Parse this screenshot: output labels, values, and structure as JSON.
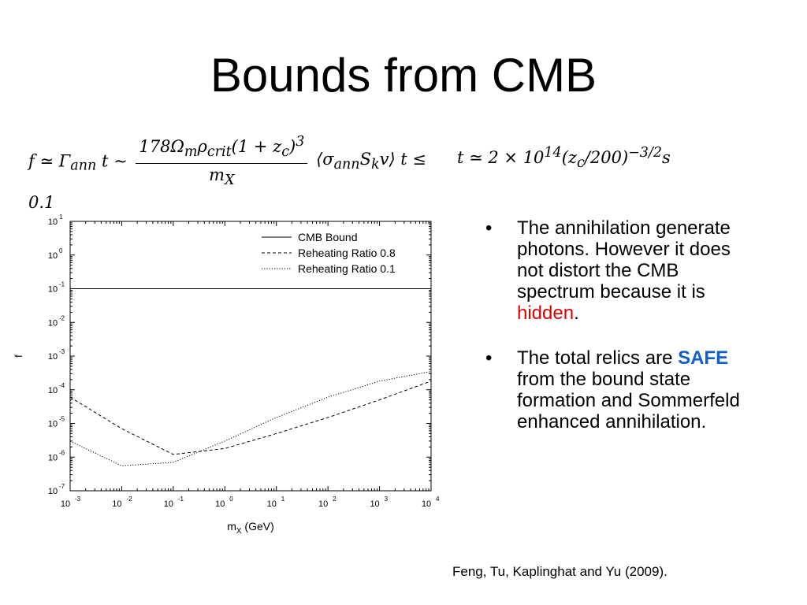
{
  "slide": {
    "title": "Bounds from CMB",
    "citation": "Feng, Tu, Kaplinghat and Yu (2009)."
  },
  "formula": {
    "lhs": "f ≃ Γ",
    "lhs_sub": "ann",
    "lhs_t": "t ∼",
    "numerator": "178Ω",
    "numerator_sub_m": "m",
    "numerator_rho": "ρ",
    "numerator_sub_crit": "crit",
    "numerator_tail": "(1 + z",
    "numerator_sub_c": "c",
    "numerator_end": ")",
    "numerator_exp": "3",
    "denominator": "m",
    "denominator_sub": "X",
    "cross_section": "⟨σ",
    "cross_sub_ann": "ann",
    "cross_s": "S",
    "cross_sub_k": "k",
    "cross_end": "v⟩ t ≤ 0.1",
    "time_lhs": "t ≃ 2 × 10",
    "time_exp": "14",
    "time_mid": "(z",
    "time_sub_c": "c",
    "time_tail": "/200)",
    "time_exp2": "−3/2",
    "time_unit": "s"
  },
  "bullets": [
    {
      "text_before": "The annihilation generate photons. However it does not distort the CMB spectrum because it is ",
      "highlight": "hidden",
      "text_after": ".",
      "highlight_color": "#e00000"
    },
    {
      "text_before": "The total relics are ",
      "highlight": "SAFE",
      "text_after": " from the bound state formation and Sommerfeld enhanced annihilation.",
      "highlight_color": "#1060d0"
    }
  ],
  "bullet_glyph": "•",
  "chart_data": {
    "type": "line",
    "xlabel": "m",
    "xlabel_sub": "X",
    "xlabel_unit": " (GeV)",
    "ylabel": "f",
    "x_scale": "log",
    "y_scale": "log",
    "xlim": [
      0.001,
      10000
    ],
    "ylim": [
      1e-07,
      10
    ],
    "x_ticks": [
      {
        "value": 0.001,
        "base": "10",
        "exp": "-3"
      },
      {
        "value": 0.01,
        "base": "10",
        "exp": "-2"
      },
      {
        "value": 0.1,
        "base": "10",
        "exp": "-1"
      },
      {
        "value": 1,
        "base": "10",
        "exp": "0"
      },
      {
        "value": 10,
        "base": "10",
        "exp": "1"
      },
      {
        "value": 100,
        "base": "10",
        "exp": "2"
      },
      {
        "value": 1000,
        "base": "10",
        "exp": "3"
      },
      {
        "value": 10000,
        "base": "10",
        "exp": "4"
      }
    ],
    "y_ticks": [
      {
        "value": 10,
        "base": "10",
        "exp": "1"
      },
      {
        "value": 1,
        "base": "10",
        "exp": "0"
      },
      {
        "value": 0.1,
        "base": "10",
        "exp": "-1"
      },
      {
        "value": 0.01,
        "base": "10",
        "exp": "-2"
      },
      {
        "value": 0.001,
        "base": "10",
        "exp": "-3"
      },
      {
        "value": 0.0001,
        "base": "10",
        "exp": "-4"
      },
      {
        "value": 1e-05,
        "base": "10",
        "exp": "-5"
      },
      {
        "value": 1e-06,
        "base": "10",
        "exp": "-6"
      },
      {
        "value": 1e-07,
        "base": "10",
        "exp": "-7"
      }
    ],
    "legend_position": "top-right",
    "grid": false,
    "series": [
      {
        "name": "CMB Bound",
        "style": "solid",
        "x": [
          0.001,
          10000
        ],
        "y": [
          0.1,
          0.1
        ]
      },
      {
        "name": "Reheating Ratio 0.8",
        "style": "dashed",
        "x": [
          0.001,
          0.01,
          0.1,
          1,
          10,
          100,
          1000,
          10000
        ],
        "y": [
          6e-05,
          7e-06,
          1.2e-06,
          1.8e-06,
          5e-06,
          1.5e-05,
          5e-05,
          0.00018
        ]
      },
      {
        "name": "Reheating Ratio 0.1",
        "style": "dotted",
        "x": [
          0.001,
          0.01,
          0.1,
          1,
          10,
          100,
          1000,
          10000
        ],
        "y": [
          3e-06,
          5.5e-07,
          7e-07,
          3e-06,
          1.5e-05,
          6e-05,
          0.00018,
          0.00035
        ]
      }
    ]
  }
}
